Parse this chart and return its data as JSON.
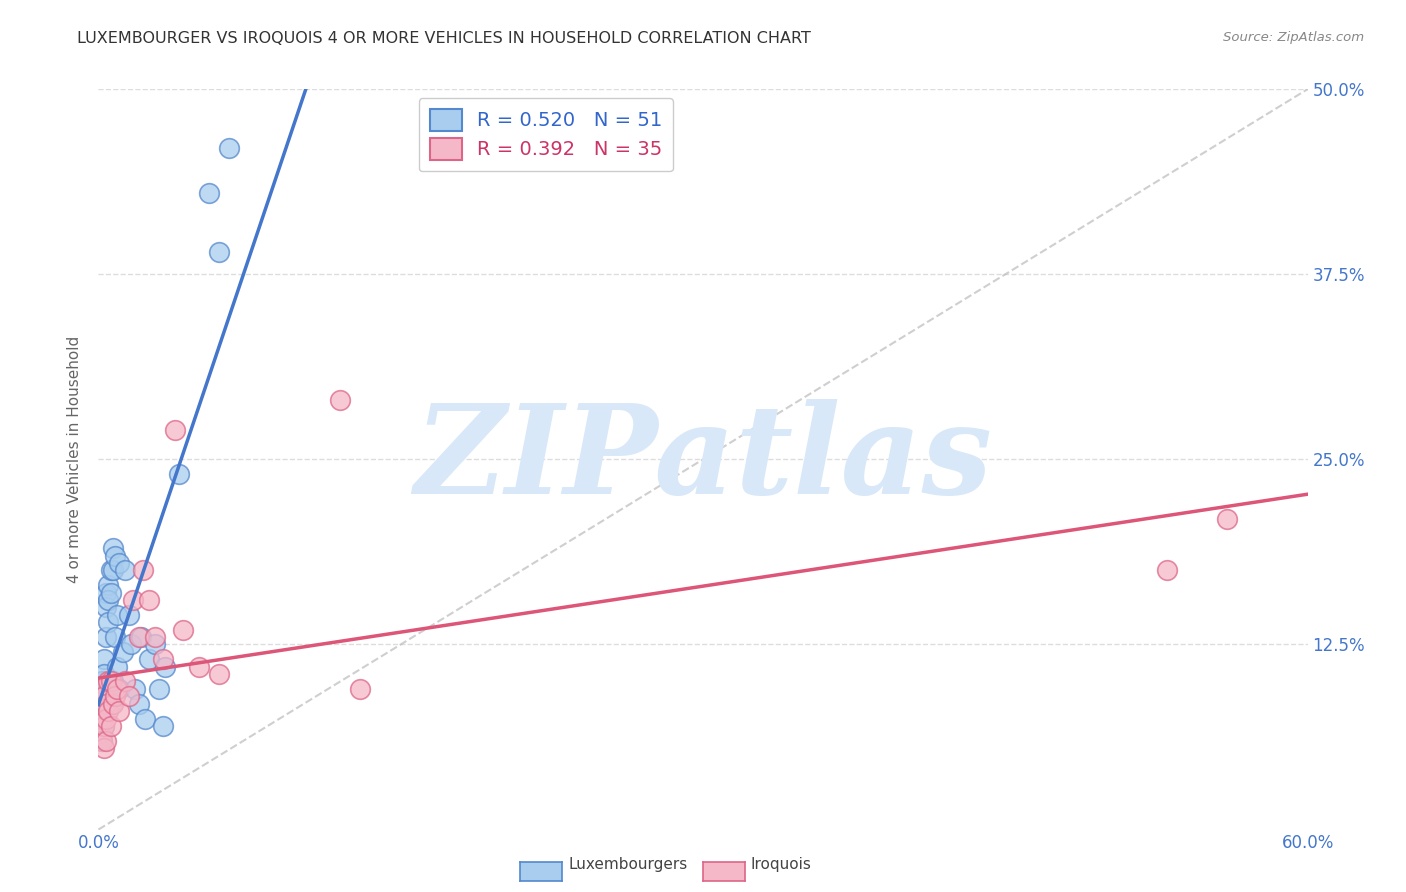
{
  "title": "LUXEMBOURGER VS IROQUOIS 4 OR MORE VEHICLES IN HOUSEHOLD CORRELATION CHART",
  "source": "Source: ZipAtlas.com",
  "xlabel_ticks": [
    "0.0%",
    "",
    "",
    "",
    "",
    "",
    "60.0%"
  ],
  "xlabel_vals": [
    0.0,
    0.1,
    0.2,
    0.3,
    0.4,
    0.5,
    0.6
  ],
  "xlim": [
    0.0,
    0.6
  ],
  "ylim": [
    0.0,
    0.5
  ],
  "ytick_vals": [
    0.0,
    0.125,
    0.25,
    0.375,
    0.5
  ],
  "ytick_right_labels": [
    "12.5%",
    "25.0%",
    "37.5%",
    "50.0%"
  ],
  "ytick_right_vals": [
    0.125,
    0.25,
    0.375,
    0.5
  ],
  "color_blue": "#A8CDEE",
  "color_pink": "#F5B8C8",
  "color_blue_edge": "#5588CC",
  "color_pink_edge": "#DD6688",
  "color_blue_line": "#4477CC",
  "color_pink_line": "#DD5577",
  "color_ref_line": "#BBBBBB",
  "color_grid": "#DDDDDD",
  "color_title": "#333333",
  "color_source": "#888888",
  "color_axis_label": "#4477CC",
  "color_ylabel": "#666666",
  "ylabel": "4 or more Vehicles in Household",
  "watermark_text": "ZIPatlas",
  "watermark_color": "#D8E8F8",
  "bg_color": "#FFFFFF",
  "scatter_blue_x": [
    0.001,
    0.001,
    0.001,
    0.002,
    0.002,
    0.002,
    0.002,
    0.002,
    0.002,
    0.003,
    0.003,
    0.003,
    0.003,
    0.003,
    0.004,
    0.004,
    0.004,
    0.004,
    0.005,
    0.005,
    0.005,
    0.005,
    0.006,
    0.006,
    0.006,
    0.007,
    0.007,
    0.007,
    0.008,
    0.008,
    0.009,
    0.009,
    0.01,
    0.01,
    0.012,
    0.013,
    0.015,
    0.016,
    0.018,
    0.02,
    0.021,
    0.023,
    0.025,
    0.03,
    0.032,
    0.028,
    0.033,
    0.04,
    0.055,
    0.06,
    0.065
  ],
  "scatter_blue_y": [
    0.095,
    0.08,
    0.07,
    0.1,
    0.09,
    0.085,
    0.075,
    0.065,
    0.06,
    0.115,
    0.105,
    0.095,
    0.08,
    0.07,
    0.16,
    0.15,
    0.13,
    0.09,
    0.165,
    0.155,
    0.14,
    0.095,
    0.175,
    0.16,
    0.085,
    0.19,
    0.175,
    0.1,
    0.185,
    0.13,
    0.145,
    0.11,
    0.18,
    0.095,
    0.12,
    0.175,
    0.145,
    0.125,
    0.095,
    0.085,
    0.13,
    0.075,
    0.115,
    0.095,
    0.07,
    0.125,
    0.11,
    0.24,
    0.43,
    0.39,
    0.46
  ],
  "scatter_pink_x": [
    0.001,
    0.001,
    0.002,
    0.002,
    0.002,
    0.003,
    0.003,
    0.003,
    0.004,
    0.004,
    0.004,
    0.005,
    0.005,
    0.006,
    0.006,
    0.007,
    0.008,
    0.009,
    0.01,
    0.013,
    0.015,
    0.017,
    0.02,
    0.022,
    0.025,
    0.028,
    0.032,
    0.038,
    0.042,
    0.05,
    0.06,
    0.12,
    0.13,
    0.53,
    0.56
  ],
  "scatter_pink_y": [
    0.08,
    0.065,
    0.095,
    0.075,
    0.06,
    0.09,
    0.07,
    0.055,
    0.085,
    0.075,
    0.06,
    0.1,
    0.08,
    0.1,
    0.07,
    0.085,
    0.09,
    0.095,
    0.08,
    0.1,
    0.09,
    0.155,
    0.13,
    0.175,
    0.155,
    0.13,
    0.115,
    0.27,
    0.135,
    0.11,
    0.105,
    0.29,
    0.095,
    0.175,
    0.21
  ],
  "legend_r1_text": "R = 0.520",
  "legend_n1_text": "N = 51",
  "legend_r2_text": "R = 0.392",
  "legend_n2_text": "N = 35",
  "legend_color1": "#3366CC",
  "legend_color2": "#CC3366",
  "bottom_legend_lux": "Luxembourgers",
  "bottom_legend_iro": "Iroquois"
}
